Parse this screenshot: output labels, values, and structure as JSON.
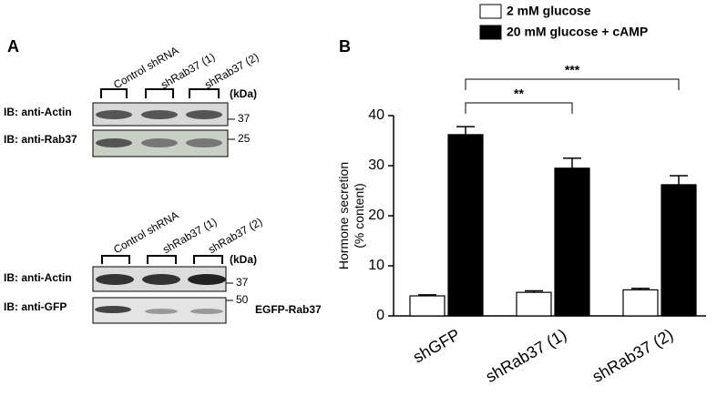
{
  "panel_a": {
    "label": "A",
    "blot_1": {
      "lanes": [
        "Control shRNA",
        "shRab37 (1)",
        "shRab37 (2)"
      ],
      "unit": "(kDa)",
      "rows": [
        {
          "label": "IB: anti-Actin",
          "marker": "37"
        },
        {
          "label": "IB: anti-Rab37",
          "marker": "25"
        }
      ]
    },
    "blot_2": {
      "lanes": [
        "Control shRNA",
        "shRab37 (1)",
        "shRab37 (2)"
      ],
      "unit": "(kDa)",
      "rows": [
        {
          "label": "IB: anti-Actin",
          "marker": "37"
        },
        {
          "label": "IB: anti-GFP",
          "marker": "50"
        }
      ],
      "note": "EGFP-Rab37"
    }
  },
  "chart_data": {
    "type": "bar",
    "panel_label": "B",
    "ylabel": [
      "Hormone secretion",
      "(% content)"
    ],
    "categories": [
      "shGFP",
      "shRab37 (1)",
      "shRab37 (2)"
    ],
    "series": [
      {
        "name": "2 mM glucose",
        "color": "#ffffff",
        "values": [
          4.0,
          4.7,
          5.2
        ],
        "errors": [
          0.2,
          0.3,
          0.3
        ]
      },
      {
        "name": "20 mM glucose + cAMP",
        "color": "#000000",
        "values": [
          36.2,
          29.5,
          26.2
        ],
        "errors": [
          1.6,
          2.0,
          1.8
        ]
      }
    ],
    "ylim": [
      0,
      40
    ],
    "yticks": [
      0,
      10,
      20,
      30,
      40
    ],
    "grid": false,
    "legend": "top",
    "annotations": [
      {
        "text": "**",
        "from": 0,
        "to": 1
      },
      {
        "text": "***",
        "from": 0,
        "to": 2
      }
    ]
  }
}
